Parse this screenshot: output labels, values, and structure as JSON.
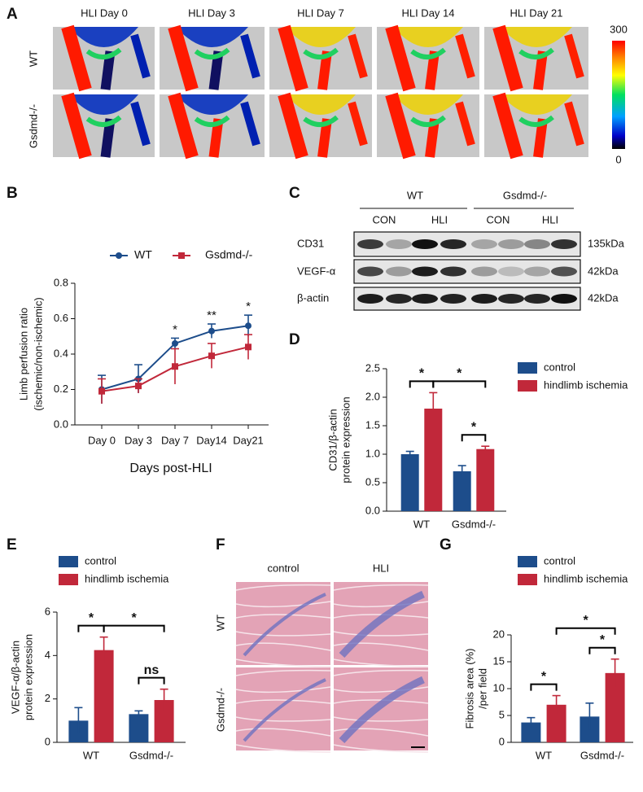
{
  "panel_a": {
    "label": "A",
    "columns": [
      "HLI Day 0",
      "HLI Day 3",
      "HLI Day 7",
      "HLI Day 14",
      "HLI Day 21"
    ],
    "rows": [
      "WT",
      "Gsdmd-/-"
    ],
    "colorbar": {
      "max": 300,
      "min": 0
    }
  },
  "panel_c": {
    "label": "C",
    "groups": [
      "WT",
      "Gsdmd-/-"
    ],
    "lanes": [
      "CON",
      "HLI",
      "CON",
      "HLI"
    ],
    "rows": [
      "CD31",
      "VEGF-α",
      "β-actin"
    ],
    "sizes": [
      "135kDa",
      "42kDa",
      "42kDa"
    ]
  },
  "panel_f": {
    "label": "F",
    "columns": [
      "control",
      "HLI"
    ],
    "rows": [
      "WT",
      "Gsdmd-/-"
    ]
  },
  "chart_data": [
    {
      "type": "line",
      "label": "B",
      "xlabel": "Days post-HLI",
      "ylabel": [
        "Limb perfusion ratio",
        "(ischemic/non-ischemic)"
      ],
      "categories": [
        "Day 0",
        "Day 3",
        "Day 7",
        "Day14",
        "Day21"
      ],
      "series": [
        {
          "name": "WT",
          "color": "#1d4d8b",
          "marker": "circle",
          "values": [
            0.2,
            0.26,
            0.46,
            0.53,
            0.56
          ],
          "errors": [
            0.08,
            0.08,
            0.03,
            0.04,
            0.06
          ]
        },
        {
          "name": "Gsdmd-/-",
          "color": "#c1283a",
          "marker": "square",
          "values": [
            0.19,
            0.22,
            0.33,
            0.39,
            0.44
          ],
          "errors": [
            0.07,
            0.04,
            0.1,
            0.07,
            0.07
          ]
        }
      ],
      "significance": [
        null,
        null,
        "*",
        "**",
        "*"
      ],
      "ylim": [
        0,
        0.8
      ],
      "yticks": [
        {
          "value": 0,
          "label": "0.0"
        },
        {
          "value": 0.2,
          "label": "0.2"
        },
        {
          "value": 0.4,
          "label": "0.4"
        },
        {
          "value": 0.6,
          "label": "0.6"
        },
        {
          "value": 0.8,
          "label": "0.8"
        }
      ]
    },
    {
      "type": "bar",
      "label": "D",
      "ylabel": [
        "CD31/β-actin",
        "protein expression"
      ],
      "categories": [
        "WT",
        "Gsdmd-/-"
      ],
      "series": [
        {
          "name": "control",
          "color": "#1d4d8b",
          "values": [
            1.0,
            0.7
          ],
          "errors": [
            0.05,
            0.1
          ]
        },
        {
          "name": "hindlimb ischemia",
          "color": "#c1283a",
          "values": [
            1.8,
            1.09
          ],
          "errors": [
            0.28,
            0.05
          ]
        }
      ],
      "brackets": [
        {
          "text": "*",
          "from": [
            0,
            0
          ],
          "to": [
            0,
            1
          ]
        },
        {
          "text": "*",
          "from": [
            0,
            1
          ],
          "to": [
            1,
            1
          ]
        },
        {
          "text": "*",
          "from": [
            1,
            0
          ],
          "to": [
            1,
            1
          ]
        }
      ],
      "ylim": [
        0,
        2.5
      ],
      "yticks": [
        {
          "value": 0,
          "label": "0.0"
        },
        {
          "value": 0.5,
          "label": "0.5"
        },
        {
          "value": 1,
          "label": "1.0"
        },
        {
          "value": 1.5,
          "label": "1.5"
        },
        {
          "value": 2,
          "label": "2.0"
        },
        {
          "value": 2.5,
          "label": "2.5"
        }
      ]
    },
    {
      "type": "bar",
      "label": "E",
      "ylabel": [
        "VEGF-α/β-actin",
        "protein expression"
      ],
      "categories": [
        "WT",
        "Gsdmd-/-"
      ],
      "series": [
        {
          "name": "control",
          "color": "#1d4d8b",
          "values": [
            1.0,
            1.3
          ],
          "errors": [
            0.6,
            0.15
          ]
        },
        {
          "name": "hindlimb ischemia",
          "color": "#c1283a",
          "values": [
            4.25,
            1.95
          ],
          "errors": [
            0.6,
            0.5
          ]
        }
      ],
      "brackets": [
        {
          "text": "*",
          "from": [
            0,
            0
          ],
          "to": [
            0,
            1
          ]
        },
        {
          "text": "*",
          "from": [
            0,
            1
          ],
          "to": [
            1,
            1
          ]
        },
        {
          "text": "ns",
          "from": [
            1,
            0
          ],
          "to": [
            1,
            1
          ]
        }
      ],
      "ylim": [
        0,
        6
      ],
      "yticks": [
        0,
        2,
        4,
        6
      ]
    },
    {
      "type": "bar",
      "label": "G",
      "ylabel": [
        "Fibrosis area (%)",
        "/per field"
      ],
      "categories": [
        "WT",
        "Gsdmd-/-"
      ],
      "series": [
        {
          "name": "control",
          "color": "#1d4d8b",
          "values": [
            3.7,
            4.8
          ],
          "errors": [
            0.9,
            2.5
          ]
        },
        {
          "name": "hindlimb ischemia",
          "color": "#c1283a",
          "values": [
            7.0,
            12.9
          ],
          "errors": [
            1.7,
            2.6
          ]
        }
      ],
      "brackets": [
        {
          "text": "*",
          "from": [
            0,
            0
          ],
          "to": [
            0,
            1
          ]
        },
        {
          "text": "*",
          "from": [
            0,
            1
          ],
          "to": [
            1,
            1
          ]
        },
        {
          "text": "*",
          "from": [
            1,
            0
          ],
          "to": [
            1,
            1
          ]
        }
      ],
      "ylim": [
        0,
        20
      ],
      "yticks": [
        0,
        5,
        10,
        15,
        20
      ]
    }
  ]
}
